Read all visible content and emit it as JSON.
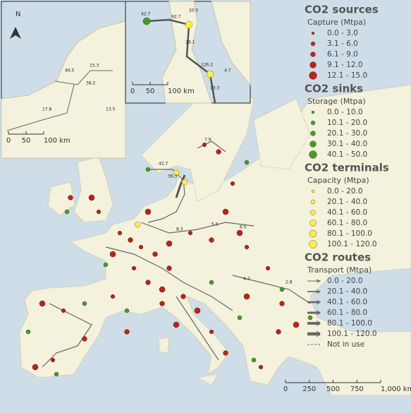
{
  "north": "N",
  "legend": [
    {
      "title": "CO2 sources",
      "subtitle": "Capture (Mtpa)",
      "items": [
        "0.0 - 3.0",
        "3.1 - 6.0",
        "6.1 - 9.0",
        "9.1 - 12.0",
        "12.1 - 15.0"
      ]
    },
    {
      "title": "CO2 sinks",
      "subtitle": "Storage (Mtpa)",
      "items": [
        "0.0 - 10.0",
        "10.1 - 20.0",
        "20.1 - 30.0",
        "30.1 - 40.0",
        "40.1 - 50.0"
      ]
    },
    {
      "title": "CO2 terminals",
      "subtitle": "Capacity (Mtpa)",
      "items": [
        "0.0 - 20.0",
        "20.1 - 40.0",
        "40.1 - 60.0",
        "60.1 - 80.0",
        "80.1 - 100.0",
        "100.1 - 120.0"
      ]
    },
    {
      "title": "CO2 routes",
      "subtitle": "Transport (Mtpa)",
      "items": [
        "0.0 - 20.0",
        "20.1 - 40.0",
        "40.1 - 60.0",
        "60.1 - 80.0",
        "80.1 - 100.0",
        "100.1 - 120.0",
        "Not in use"
      ]
    }
  ],
  "scalebars": {
    "main": [
      "0",
      "250",
      "500",
      "750",
      "1,000 km"
    ],
    "inset1": [
      "0",
      "50",
      "100 km"
    ],
    "inset2": [
      "0",
      "50",
      "100 km"
    ]
  },
  "map_labels": [
    "42.7",
    "92.7",
    "20.5",
    "29.1",
    "126.2",
    "4.7",
    "13.3",
    "38.2",
    "15.3",
    "17.8",
    "46.5",
    "13.5",
    "42.7",
    "36.3",
    "7.9",
    "5.5",
    "6.5",
    "2.8",
    "4.2",
    "8.3"
  ]
}
